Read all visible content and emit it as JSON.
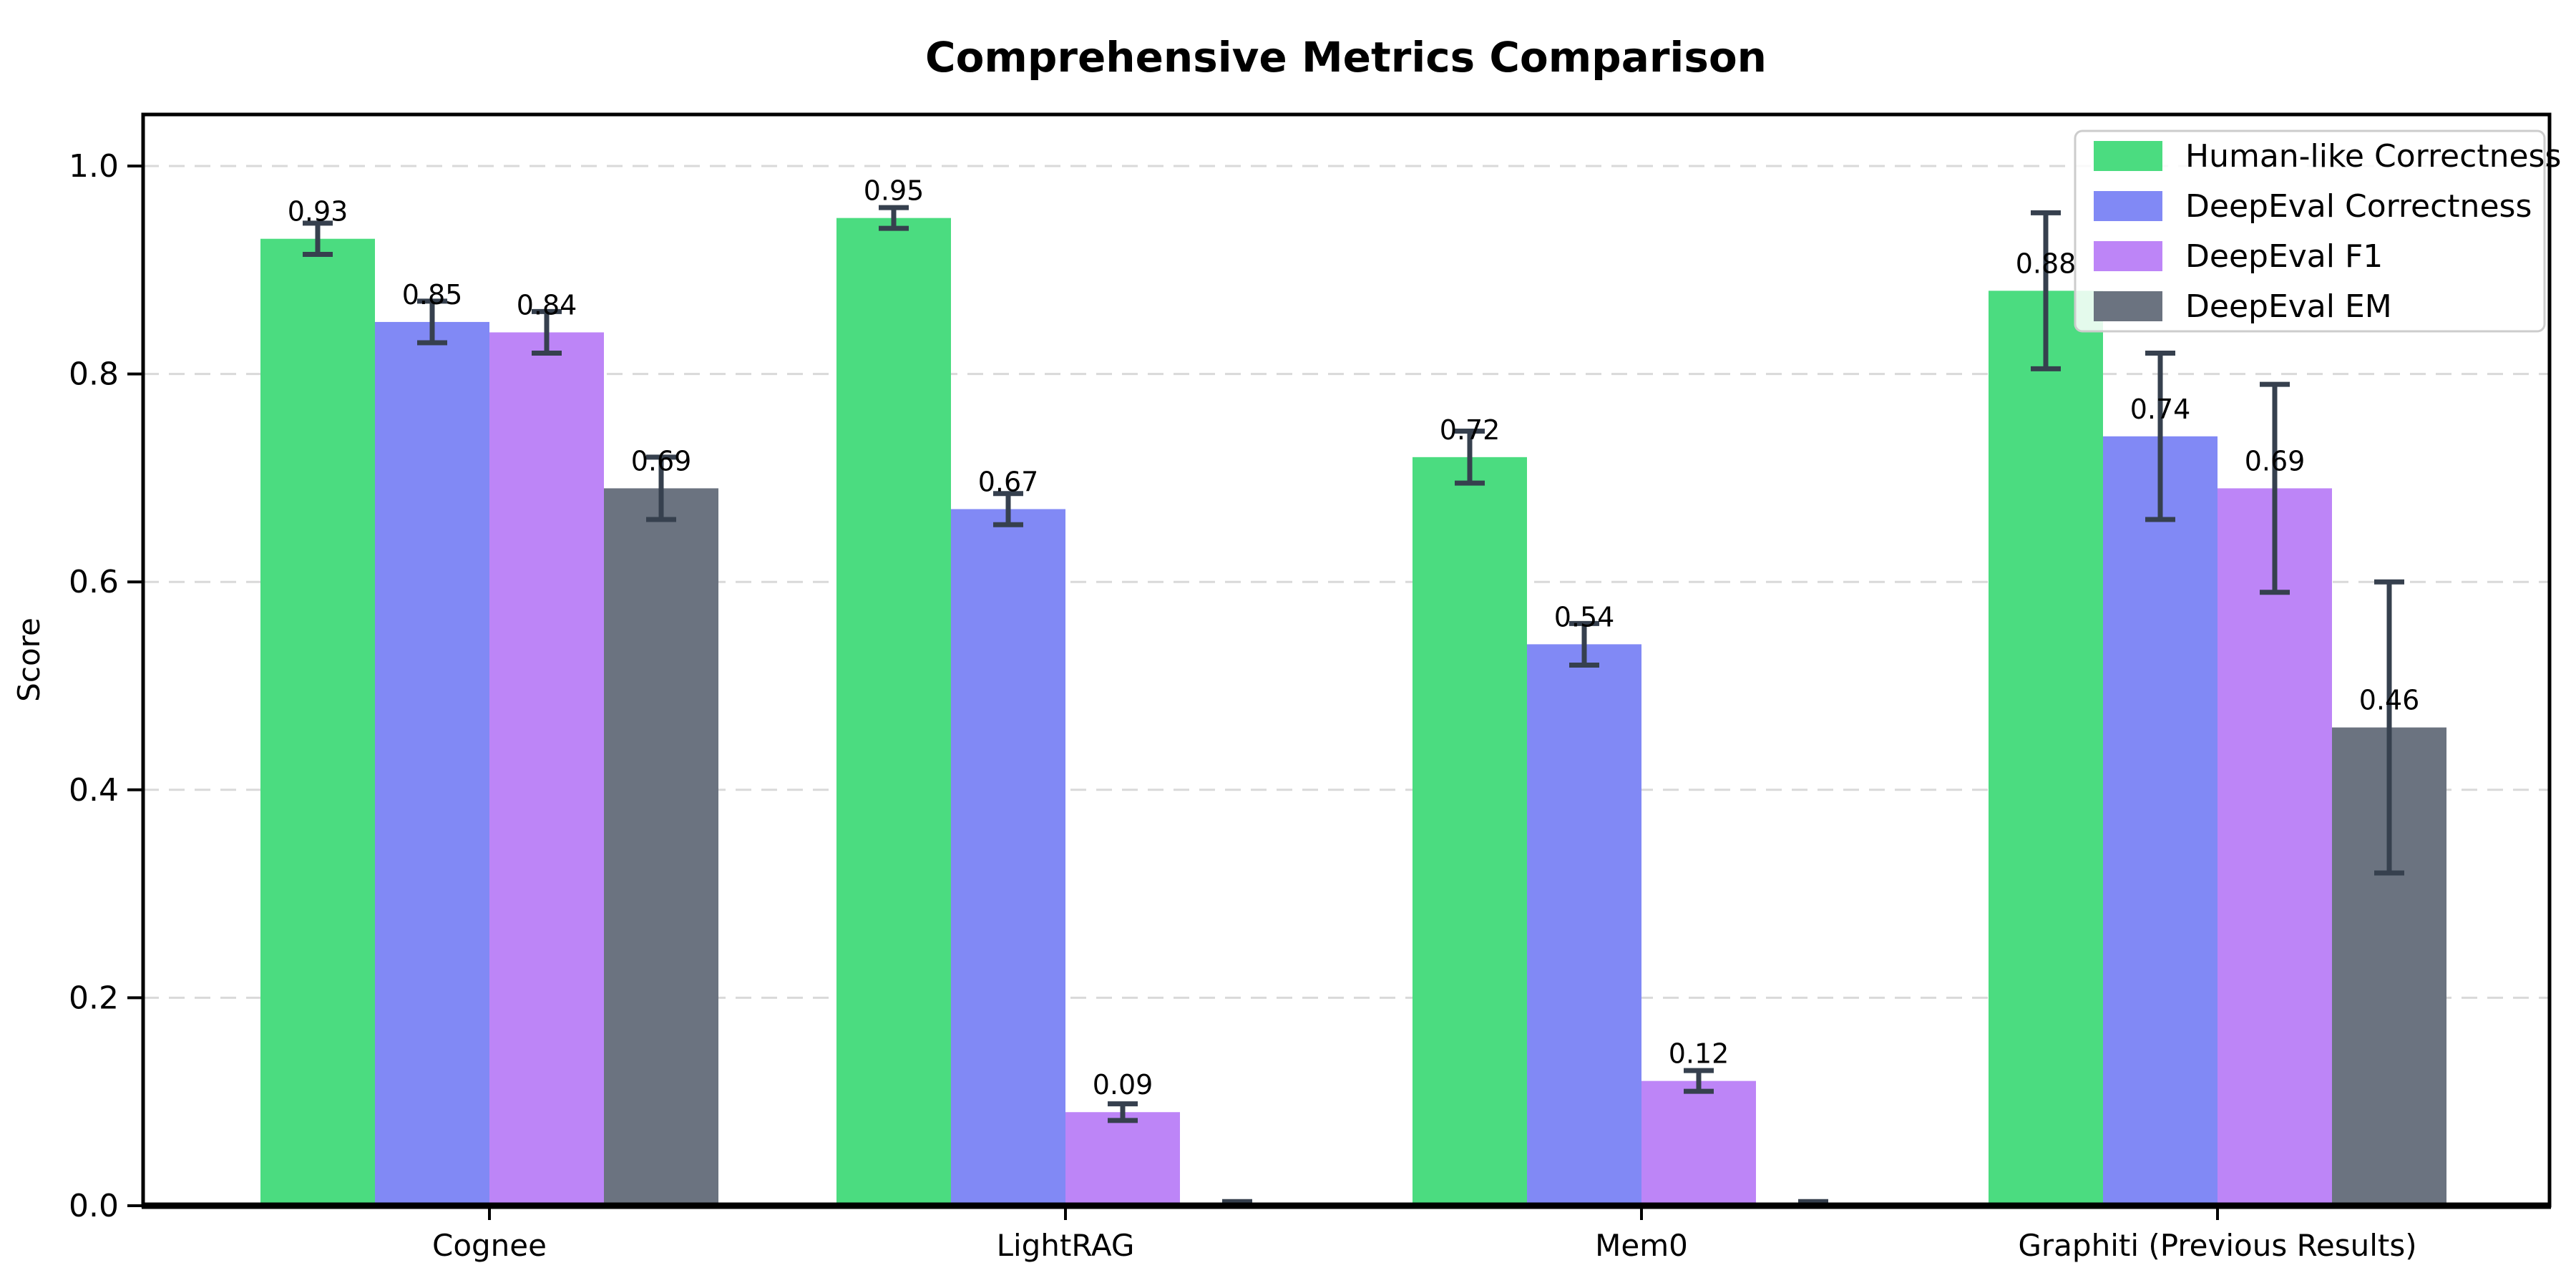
{
  "chart_data": {
    "type": "bar",
    "title": "Comprehensive Metrics Comparison",
    "ylabel": "Score",
    "xlabel": "",
    "categories": [
      "Cognee",
      "LightRAG",
      "Mem0",
      "Graphiti (Previous Results)"
    ],
    "series": [
      {
        "name": "Human-like Correctness",
        "color": "#4bdc80",
        "values": [
          0.93,
          0.95,
          0.72,
          0.88
        ],
        "errors": [
          0.015,
          0.01,
          0.025,
          0.075
        ],
        "labels": [
          "0.93",
          "0.95",
          "0.72",
          "0.88"
        ]
      },
      {
        "name": "DeepEval Correctness",
        "color": "#8189f5",
        "values": [
          0.85,
          0.67,
          0.54,
          0.74
        ],
        "errors": [
          0.02,
          0.015,
          0.02,
          0.08
        ],
        "labels": [
          "0.85",
          "0.67",
          "0.54",
          "0.74"
        ]
      },
      {
        "name": "DeepEval F1",
        "color": "#bd85f7",
        "values": [
          0.84,
          0.09,
          0.12,
          0.69
        ],
        "errors": [
          0.02,
          0.008,
          0.01,
          0.1
        ],
        "labels": [
          "0.84",
          "0.09",
          "0.12",
          "0.69"
        ]
      },
      {
        "name": "DeepEval EM",
        "color": "#6b7380",
        "values": [
          0.69,
          0.0,
          0.0,
          0.46
        ],
        "errors": [
          0.03,
          0.004,
          0.004,
          0.14
        ],
        "labels": [
          "0.69",
          null,
          null,
          "0.46"
        ]
      }
    ],
    "ylim": [
      0,
      1.05
    ],
    "yticks": [
      "0.0",
      "0.2",
      "0.4",
      "0.6",
      "0.8",
      "1.0"
    ],
    "grid": "horizontal-dashed",
    "grid_color": "#d9d9d9",
    "error_bar_color": "#36404e",
    "axis_color": "#000000",
    "legend": {
      "position": "upper-right",
      "entries": [
        "Human-like Correctness",
        "DeepEval Correctness",
        "DeepEval F1",
        "DeepEval EM"
      ]
    }
  }
}
